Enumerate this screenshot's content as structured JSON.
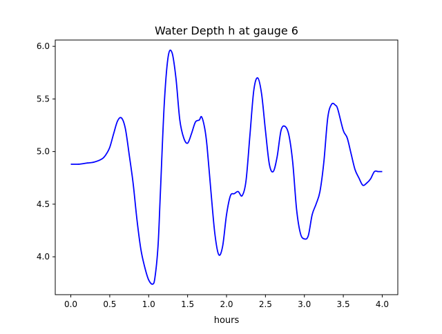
{
  "chart_data": {
    "type": "line",
    "title": "Water Depth h at gauge 6",
    "xlabel": "hours",
    "ylabel": "",
    "xlim": [
      -0.2,
      4.2
    ],
    "ylim": [
      3.64,
      6.06
    ],
    "xticks": [
      0.0,
      0.5,
      1.0,
      1.5,
      2.0,
      2.5,
      3.0,
      3.5,
      4.0
    ],
    "xtick_labels": [
      "0.0",
      "0.5",
      "1.0",
      "1.5",
      "2.0",
      "2.5",
      "3.0",
      "3.5",
      "4.0"
    ],
    "yticks": [
      4.0,
      4.5,
      5.0,
      5.5,
      6.0
    ],
    "ytick_labels": [
      "4.0",
      "4.5",
      "5.0",
      "5.5",
      "6.0"
    ],
    "grid": false,
    "legend": "none",
    "series": [
      {
        "color": "#0000ff",
        "x": [
          0.0,
          0.1,
          0.2,
          0.3,
          0.4,
          0.45,
          0.5,
          0.55,
          0.6,
          0.65,
          0.7,
          0.75,
          0.8,
          0.85,
          0.9,
          0.95,
          1.0,
          1.05,
          1.08,
          1.12,
          1.15,
          1.2,
          1.25,
          1.3,
          1.35,
          1.4,
          1.45,
          1.5,
          1.55,
          1.6,
          1.65,
          1.68,
          1.72,
          1.75,
          1.8,
          1.85,
          1.9,
          1.95,
          2.0,
          2.05,
          2.1,
          2.15,
          2.2,
          2.25,
          2.3,
          2.35,
          2.4,
          2.45,
          2.5,
          2.55,
          2.6,
          2.65,
          2.7,
          2.75,
          2.8,
          2.85,
          2.9,
          2.95,
          3.0,
          3.05,
          3.1,
          3.15,
          3.2,
          3.25,
          3.3,
          3.35,
          3.4,
          3.43,
          3.5,
          3.55,
          3.6,
          3.65,
          3.7,
          3.75,
          3.8,
          3.85,
          3.9,
          3.95,
          4.0
        ],
        "y": [
          4.88,
          4.88,
          4.89,
          4.9,
          4.93,
          4.97,
          5.04,
          5.17,
          5.29,
          5.32,
          5.22,
          4.97,
          4.7,
          4.35,
          4.07,
          3.9,
          3.78,
          3.74,
          3.8,
          4.1,
          4.6,
          5.45,
          5.9,
          5.94,
          5.7,
          5.3,
          5.13,
          5.08,
          5.17,
          5.28,
          5.3,
          5.33,
          5.22,
          5.05,
          4.62,
          4.22,
          4.02,
          4.1,
          4.4,
          4.58,
          4.6,
          4.62,
          4.58,
          4.72,
          5.15,
          5.58,
          5.7,
          5.55,
          5.2,
          4.88,
          4.81,
          4.95,
          5.2,
          5.24,
          5.16,
          4.9,
          4.45,
          4.22,
          4.17,
          4.2,
          4.4,
          4.5,
          4.62,
          4.9,
          5.32,
          5.45,
          5.44,
          5.4,
          5.2,
          5.13,
          4.98,
          4.83,
          4.75,
          4.68,
          4.7,
          4.74,
          4.81,
          4.81,
          4.81
        ]
      }
    ]
  }
}
